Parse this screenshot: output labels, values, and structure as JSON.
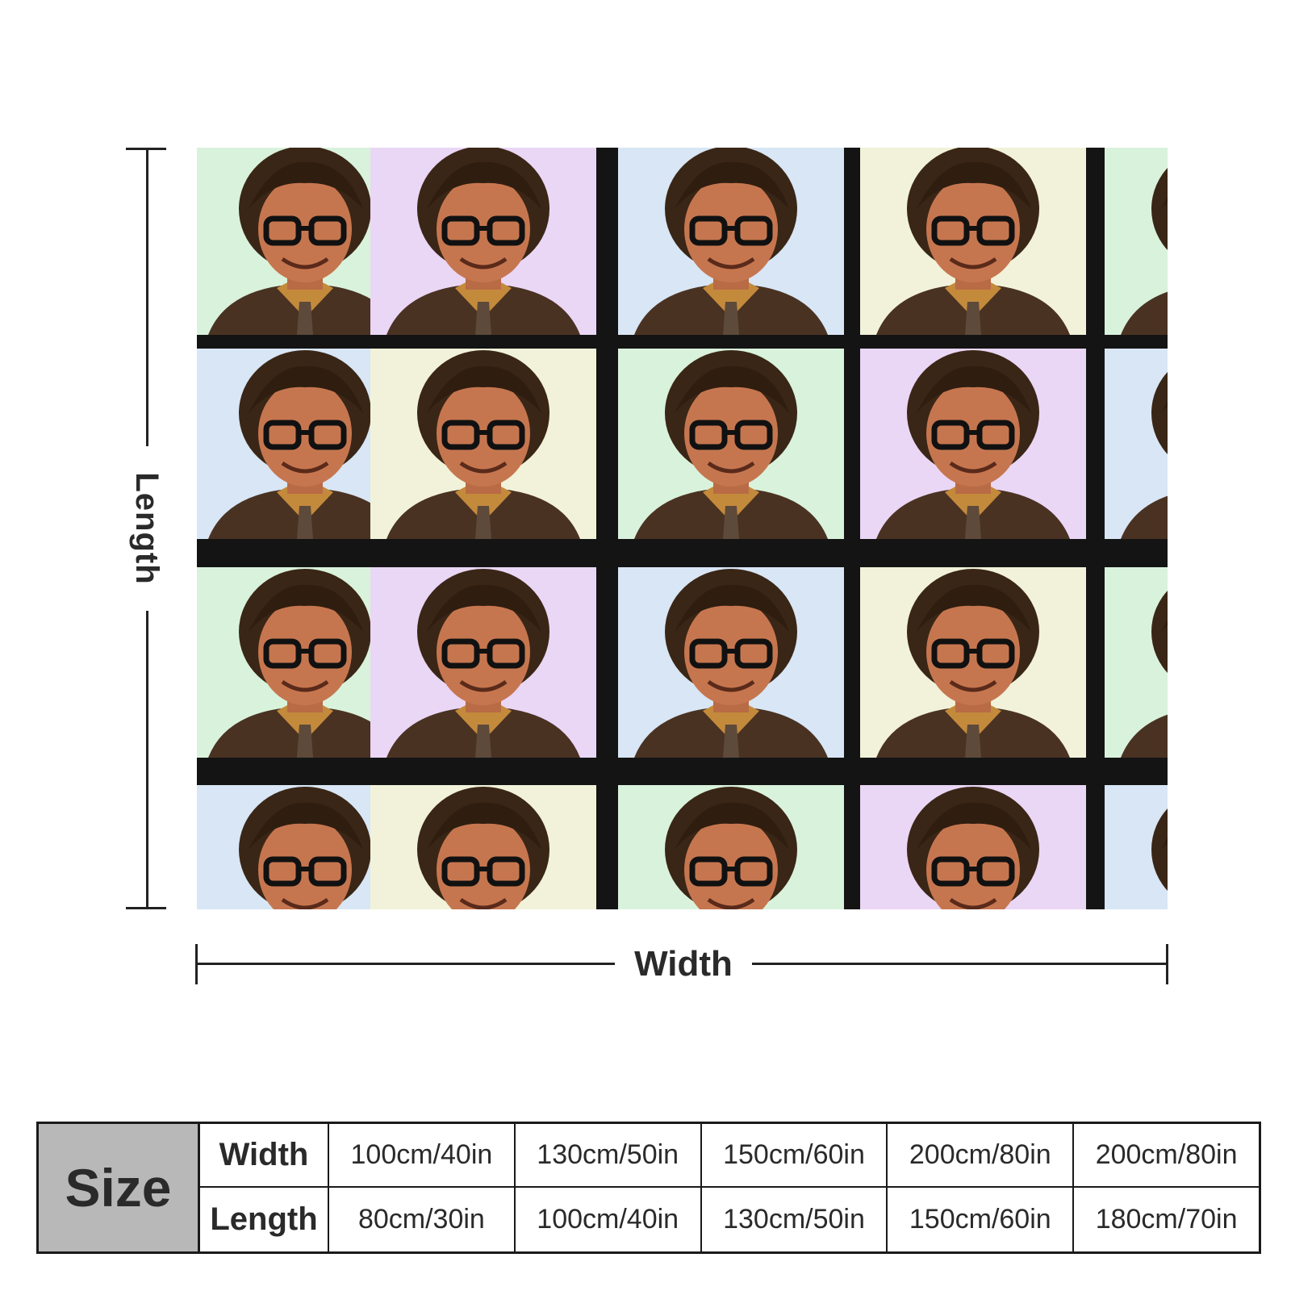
{
  "dimensions": {
    "length_label": "Length",
    "width_label": "Width"
  },
  "blanket": {
    "image_description_icon": "portrait-pattern",
    "tile_colors": [
      "#d9f2dc",
      "#ead6f5",
      "#d8e6f5",
      "#f1f2d9"
    ]
  },
  "size_table": {
    "header": "Size",
    "width_label": "Width",
    "length_label": "Length",
    "widths": [
      "100cm/40in",
      "130cm/50in",
      "150cm/60in",
      "200cm/80in",
      "200cm/80in"
    ],
    "lengths": [
      "80cm/30in",
      "100cm/40in",
      "130cm/50in",
      "150cm/60in",
      "180cm/70in"
    ]
  }
}
